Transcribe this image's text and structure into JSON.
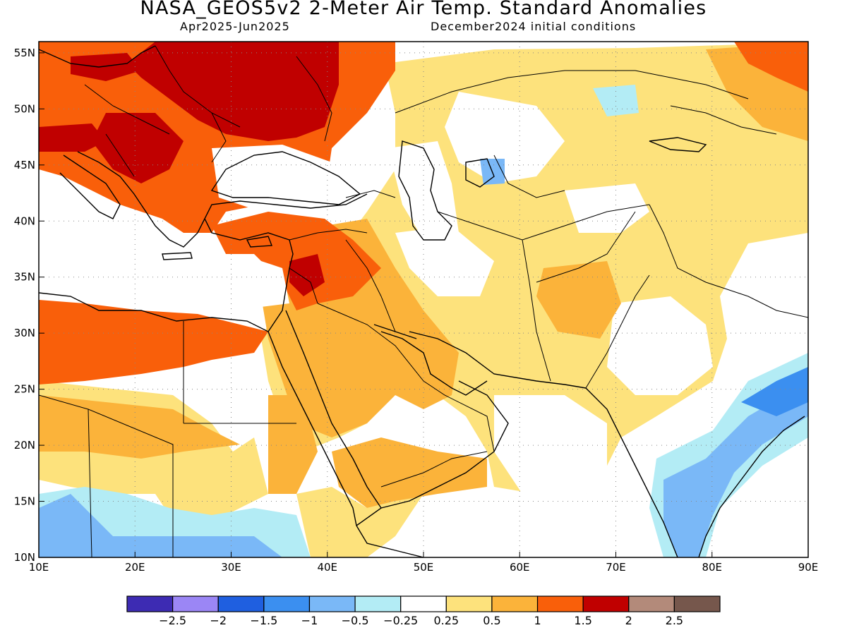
{
  "header": {
    "title": "NASA_GEOS5v2 2-Meter Air Temp. Standard Anomalies",
    "period": "Apr2025-Jun2025",
    "init": "December2024 initial conditions"
  },
  "map": {
    "lon_range": [
      10,
      90
    ],
    "lat_range": [
      10,
      56
    ],
    "x_ticks": [
      "10E",
      "20E",
      "30E",
      "40E",
      "50E",
      "60E",
      "70E",
      "80E",
      "90E"
    ],
    "y_ticks": [
      "10N",
      "15N",
      "20N",
      "25N",
      "30N",
      "35N",
      "40N",
      "45N",
      "50N",
      "55N"
    ],
    "grid": "dotted"
  },
  "legend": {
    "colors": [
      "#3d2bb3",
      "#9b86f5",
      "#1f5fe0",
      "#3b8ff0",
      "#7ab8f7",
      "#b3ecf5",
      "#ffffff",
      "#fde27c",
      "#fbb33a",
      "#f95f0a",
      "#c00000",
      "#b38a7a",
      "#76574c"
    ],
    "labels": [
      "-2.5",
      "-2",
      "-1.5",
      "-1",
      "-0.5",
      "-0.25",
      "0.25",
      "0.5",
      "1",
      "1.5",
      "2",
      "2.5"
    ]
  },
  "palette": {
    "neutral": "#ffffff",
    "pos1": "#fde27c",
    "pos2": "#fbb33a",
    "pos3": "#f95f0a",
    "pos4": "#c00000",
    "neg1": "#b3ecf5",
    "neg2": "#7ab8f7",
    "neg3": "#3b8ff0"
  }
}
